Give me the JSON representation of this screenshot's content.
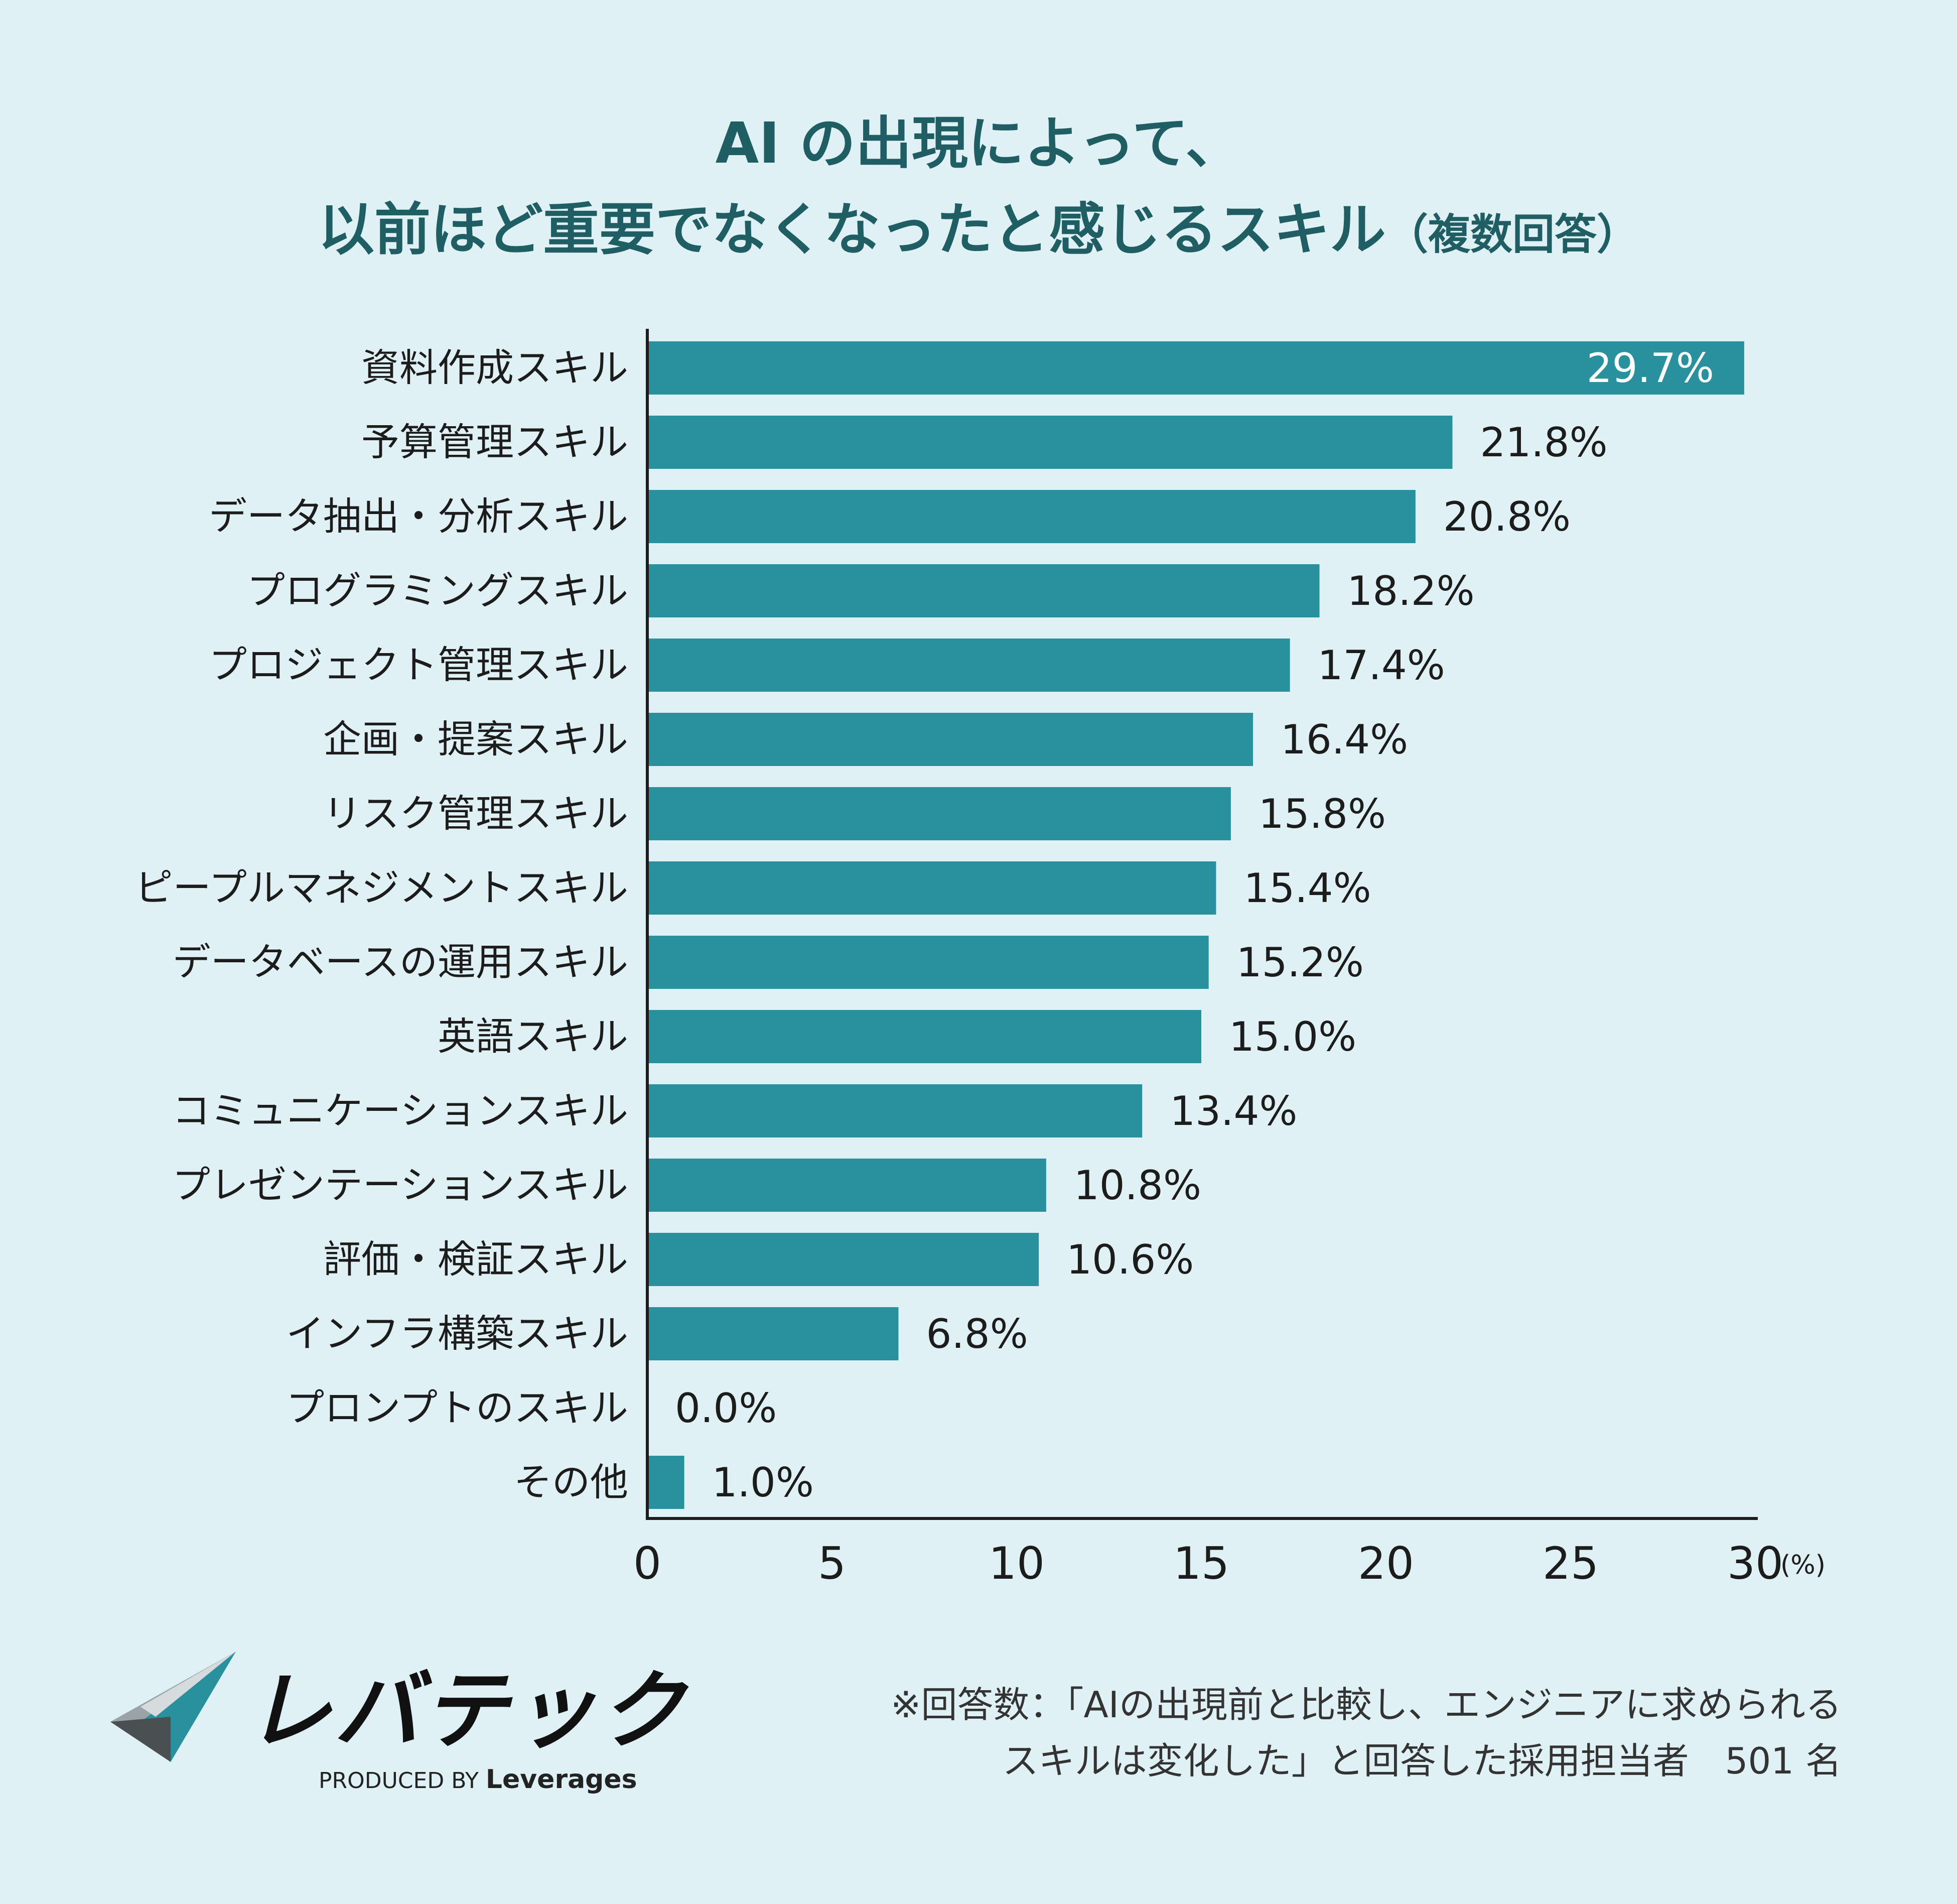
{
  "title": {
    "line1": "AI の出現によって、",
    "line2": "以前ほど重要でなくなったと感じるスキル",
    "note": "（複数回答）"
  },
  "chart_data": {
    "type": "bar",
    "orientation": "horizontal",
    "categories": [
      "資料作成スキル",
      "予算管理スキル",
      "データ抽出・分析スキル",
      "プログラミングスキル",
      "プロジェクト管理スキル",
      "企画・提案スキル",
      "リスク管理スキル",
      "ピープルマネジメントスキル",
      "データベースの運用スキル",
      "英語スキル",
      "コミュニケーションスキル",
      "プレゼンテーションスキル",
      "評価・検証スキル",
      "インフラ構築スキル",
      "プロンプトのスキル",
      "その他"
    ],
    "values": [
      29.7,
      21.8,
      20.8,
      18.2,
      17.4,
      16.4,
      15.8,
      15.4,
      15.2,
      15.0,
      13.4,
      10.8,
      10.6,
      6.8,
      0.0,
      1.0
    ],
    "value_labels": [
      "29.7%",
      "21.8%",
      "20.8%",
      "18.2%",
      "17.4%",
      "16.4%",
      "15.8%",
      "15.4%",
      "15.2%",
      "15.0%",
      "13.4%",
      "10.8%",
      "10.6%",
      "6.8%",
      "0.0%",
      "1.0%"
    ],
    "x_ticks": [
      "0",
      "5",
      "10",
      "15",
      "20",
      "25",
      "30"
    ],
    "x_unit": "(%)",
    "xlim": [
      0,
      30
    ],
    "grid": false,
    "bar_color": "#29909d",
    "axis_color": "#1c1c1c"
  },
  "footnote": {
    "line1": "※回答数：「AIの出現前と比較し、エンジニアに求められる",
    "line2": "スキルは変化した」と回答した採用担当者　501 名"
  },
  "logo": {
    "name": "レバテック",
    "produced_by": "PRODUCED BY",
    "company": "Leverages"
  }
}
